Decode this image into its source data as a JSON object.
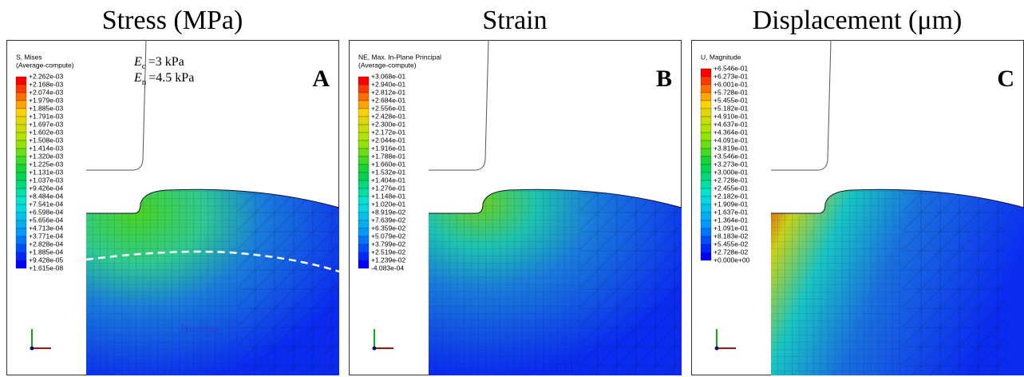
{
  "panels": [
    {
      "title": "Stress (MPa)",
      "letter": "A",
      "legend": {
        "header": [
          "S, Mises",
          "(Average-compute)"
        ],
        "labels": [
          "+2.262e-03",
          "+2.168e-03",
          "+2.074e-03",
          "+1.979e-03",
          "+1.885e-03",
          "+1.791e-03",
          "+1.697e-03",
          "+1.602e-03",
          "+1.508e-03",
          "+1.414e-03",
          "+1.320e-03",
          "+1.225e-03",
          "+1.131e-03",
          "+1.037e-03",
          "+9.426e-04",
          "+8.484e-04",
          "+7.541e-04",
          "+6.598e-04",
          "+5.656e-04",
          "+4.713e-04",
          "+3.771e-04",
          "+2.828e-04",
          "+1.885e-04",
          "+9.428e-05",
          "+1.615e-08"
        ]
      },
      "annotations": [
        {
          "symbol": "E",
          "subscript": "c",
          "text": "=3 kPa"
        },
        {
          "symbol": "E",
          "subscript": "n",
          "text": "=4.5 kPa"
        }
      ],
      "region_label": "Nucleus"
    },
    {
      "title": "Strain",
      "letter": "B",
      "legend": {
        "header": [
          "NE, Max. In-Plane Principal",
          "(Average-compute)"
        ],
        "labels": [
          "+3.068e-01",
          "+2.940e-01",
          "+2.812e-01",
          "+2.684e-01",
          "+2.556e-01",
          "+2.428e-01",
          "+2.300e-01",
          "+2.172e-01",
          "+2.044e-01",
          "+1.916e-01",
          "+1.788e-01",
          "+1.660e-01",
          "+1.532e-01",
          "+1.404e-01",
          "+1.276e-01",
          "+1.148e-01",
          "+1.020e-01",
          "+8.919e-02",
          "+7.639e-02",
          "+6.359e-02",
          "+5.079e-02",
          "+3.799e-02",
          "+2.519e-02",
          "+1.239e-02",
          "-4.083e-04"
        ]
      }
    },
    {
      "title": "Displacement (μm)",
      "letter": "C",
      "legend": {
        "header": [
          "U, Magnitude"
        ],
        "labels": [
          "+6.546e-01",
          "+6.273e-01",
          "+6.001e-01",
          "+5.728e-01",
          "+5.455e-01",
          "+5.182e-01",
          "+4.910e-01",
          "+4.637e-01",
          "+4.364e-01",
          "+4.091e-01",
          "+3.819e-01",
          "+3.546e-01",
          "+3.273e-01",
          "+3.000e-01",
          "+2.728e-01",
          "+2.455e-01",
          "+2.182e-01",
          "+1.909e-01",
          "+1.637e-01",
          "+1.364e-01",
          "+1.091e-01",
          "+8.183e-02",
          "+5.455e-02",
          "+2.728e-02",
          "+0.000e+00"
        ]
      }
    }
  ]
}
